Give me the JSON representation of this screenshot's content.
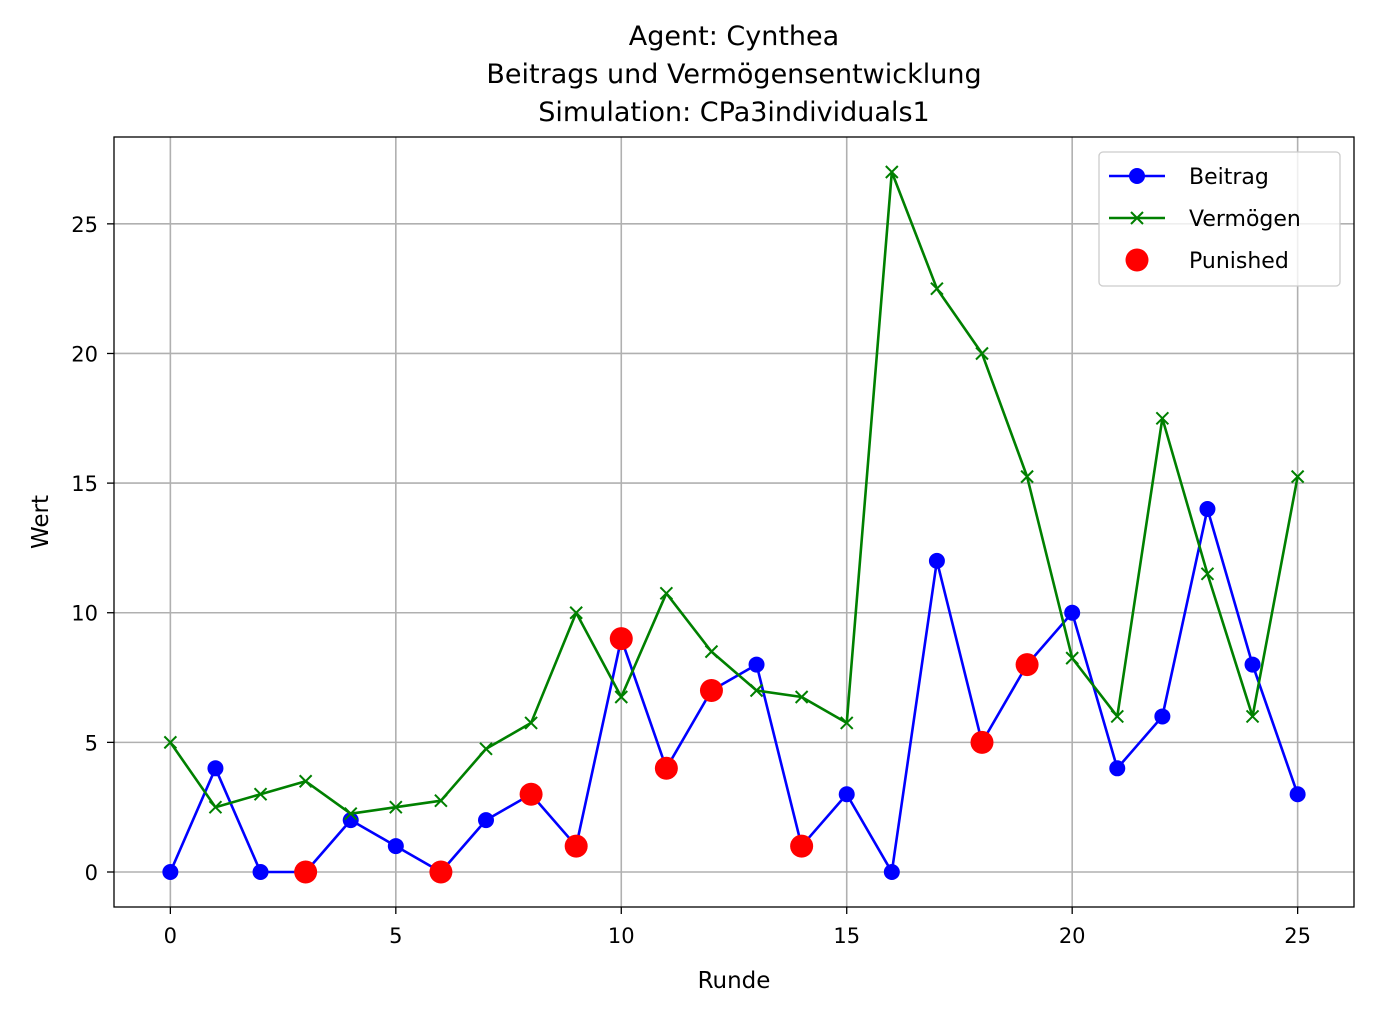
{
  "chart_data": {
    "type": "line",
    "title": [
      "Agent: Cynthea",
      "Beitrags und Vermögensentwicklung",
      "Simulation: CPa3individuals1"
    ],
    "xlabel": "Runde",
    "ylabel": "Wert",
    "xlim": [
      -1.25,
      26.25
    ],
    "ylim": [
      -1.35,
      28.35
    ],
    "xticks": [
      0,
      5,
      10,
      15,
      20,
      25
    ],
    "yticks": [
      0,
      5,
      10,
      15,
      20,
      25
    ],
    "grid": true,
    "legend_position": "top-right",
    "x": [
      0,
      1,
      2,
      3,
      4,
      5,
      6,
      7,
      8,
      9,
      10,
      11,
      12,
      13,
      14,
      15,
      16,
      17,
      18,
      19,
      20,
      21,
      22,
      23,
      24,
      25
    ],
    "series": [
      {
        "name": "Beitrag",
        "color": "#0000ff",
        "marker": "circle",
        "values": [
          0,
          4,
          0,
          0,
          2,
          1,
          0,
          2,
          3,
          1,
          9,
          4,
          7,
          8,
          1,
          3,
          0,
          12,
          5,
          8,
          10,
          4,
          6,
          14,
          8,
          3
        ]
      },
      {
        "name": "Vermögen",
        "color": "#008000",
        "marker": "x",
        "values": [
          5,
          2.5,
          3,
          3.5,
          2.25,
          2.5,
          2.75,
          4.75,
          5.75,
          10,
          6.75,
          10.75,
          8.5,
          7,
          6.75,
          5.75,
          27,
          22.5,
          20,
          15.25,
          8.25,
          6,
          17.5,
          11.5,
          6,
          15.25
        ]
      }
    ],
    "punished": {
      "name": "Punished",
      "color": "#ff0000",
      "marker": "circle",
      "x": [
        3,
        6,
        8,
        9,
        10,
        11,
        12,
        14,
        18,
        19
      ],
      "values": [
        0,
        0,
        3,
        1,
        9,
        4,
        7,
        1,
        5,
        8
      ]
    }
  }
}
